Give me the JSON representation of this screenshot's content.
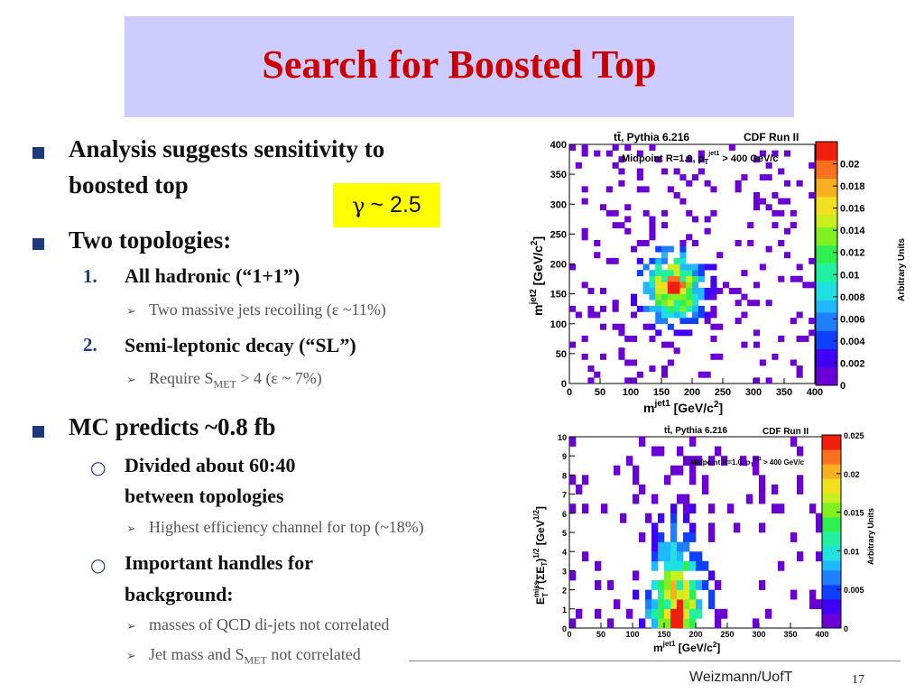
{
  "slide": {
    "title": "Search for Boosted Top",
    "gamma_box": "~ 2.5",
    "bullets": {
      "b1_line1": "Analysis suggests sensitivity to",
      "b1_line2": "boosted top",
      "b2": "Two topologies:",
      "n1_num": "1.",
      "n1_text": "All hadronic (“1+1”)",
      "n1_sub": "Two massive jets recoiling (ε ~11%)",
      "n2_num": "2.",
      "n2_text": "Semi-leptonic decay (“SL”)",
      "n2_sub_pre": "Require  S",
      "n2_sub_sub": "MET",
      "n2_sub_post": " > 4 (ε ~ 7%)",
      "b3": "MC predicts ~0.8 fb",
      "c1_line1": "Divided about 60:40",
      "c1_line2": "between topologies",
      "c1_sub": "Highest efficiency channel for top (~18%)",
      "c2_line1": "Important handles for",
      "c2_line2": "background:",
      "c2_sub1": "masses of QCD di-jets not correlated",
      "c2_sub2_pre": "Jet mass and S",
      "c2_sub2_sub": "MET",
      "c2_sub2_post": " not correlated"
    },
    "footer": "Weizmann/UofT",
    "page_number": "17"
  },
  "chart_data": [
    {
      "type": "heatmap",
      "title": "tt̄, Pythia 6.216",
      "experiment": "CDF Run II",
      "annotation": "Midpoint R=1.0, p_T^jet1 > 400 GeV/c",
      "xlabel": "m^jet1 [GeV/c^2]",
      "ylabel": "m^jet2 [GeV/c^2]",
      "zlabel": "Arbitrary Units",
      "xlim": [
        0,
        400
      ],
      "ylim": [
        0,
        400
      ],
      "x_ticks": [
        "0",
        "50",
        "100",
        "150",
        "200",
        "250",
        "300",
        "350",
        "400"
      ],
      "y_ticks": [
        "0",
        "50",
        "100",
        "150",
        "200",
        "250",
        "300",
        "350",
        "400"
      ],
      "z_ticks": [
        "0",
        "0.002",
        "0.004",
        "0.006",
        "0.008",
        "0.01",
        "0.012",
        "0.014",
        "0.016",
        "0.018",
        "0.02"
      ],
      "zlim": [
        0,
        0.022
      ],
      "description": "Dense cluster centered near m^jet1 ≈ 170, m^jet2 ≈ 160 with peak ~0.02",
      "hot_spot": {
        "x": 170,
        "y": 160,
        "z": 0.02
      }
    },
    {
      "type": "heatmap",
      "title": "tt̄, Pythia 6.216",
      "experiment": "CDF Run II",
      "annotation": "Midpoint R=1.0, p_T^jet1 > 400 GeV/c",
      "xlabel": "m^jet1 [GeV/c^2]",
      "ylabel": "E_T^miss / (ΣE_T)^1/2 [GeV^1/2]",
      "zlabel": "Arbitrary Units",
      "xlim": [
        0,
        400
      ],
      "ylim": [
        0,
        10
      ],
      "x_ticks": [
        "0",
        "50",
        "100",
        "150",
        "200",
        "250",
        "300",
        "350",
        "400"
      ],
      "y_ticks": [
        "0",
        "1",
        "2",
        "3",
        "4",
        "5",
        "6",
        "7",
        "8",
        "9",
        "10"
      ],
      "z_ticks": [
        "0",
        "0.005",
        "0.01",
        "0.015",
        "0.02",
        "0.025"
      ],
      "zlim": [
        0,
        0.025
      ],
      "description": "Concentration near m^jet1 ≈ 170, E_T^miss/√ΣE_T ≈ 0.5-2 with peak ~0.025",
      "hot_spot": {
        "x": 170,
        "y": 0.5,
        "z": 0.025
      }
    }
  ]
}
